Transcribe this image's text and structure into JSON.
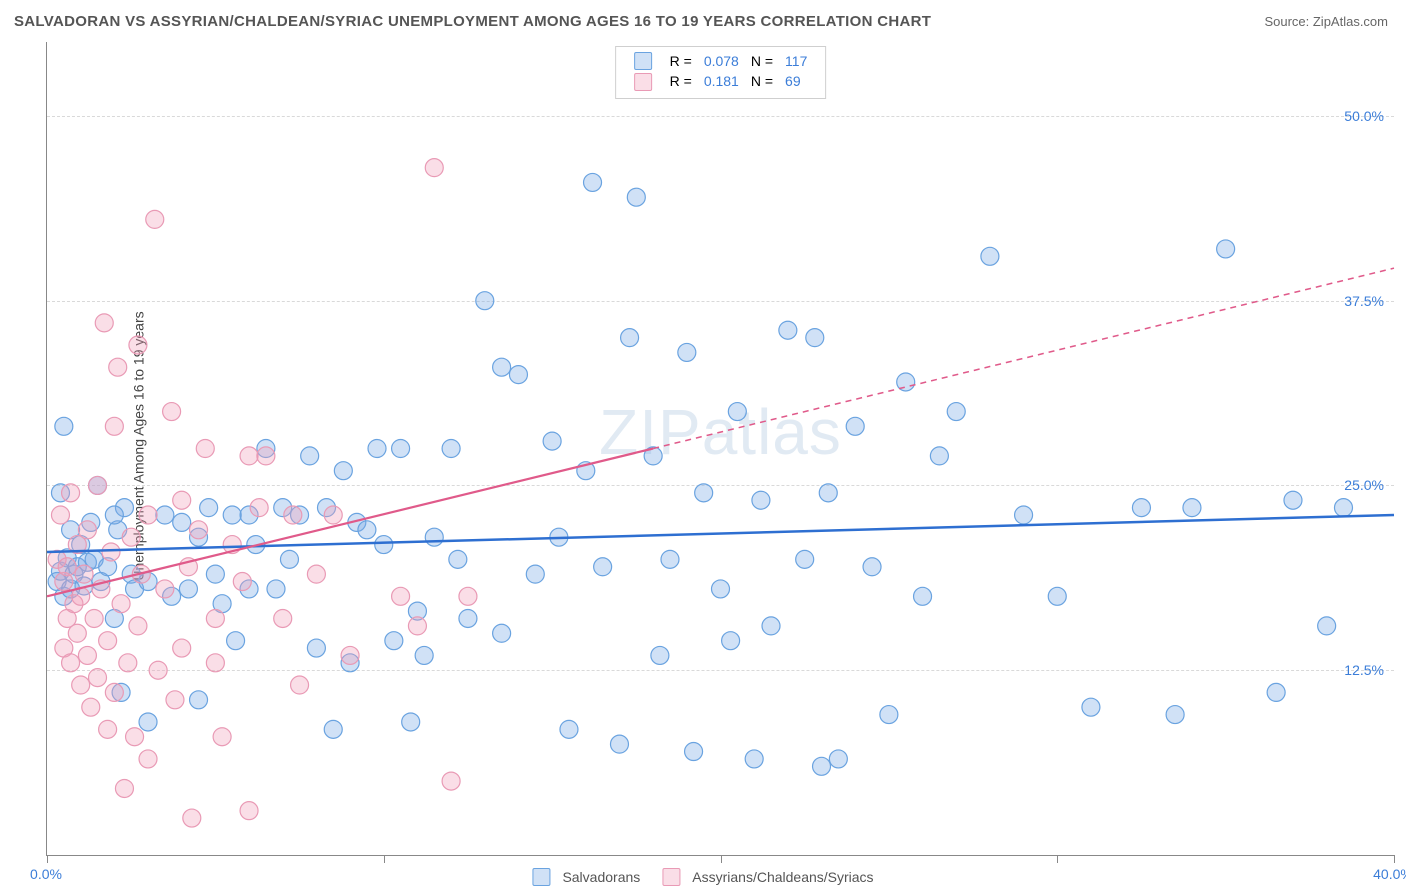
{
  "header": {
    "title": "SALVADORAN VS ASSYRIAN/CHALDEAN/SYRIAC UNEMPLOYMENT AMONG AGES 16 TO 19 YEARS CORRELATION CHART",
    "source_prefix": "Source: ",
    "source_link": "ZipAtlas.com"
  },
  "watermark": {
    "bold": "ZIP",
    "light": "atlas"
  },
  "chart": {
    "type": "scatter",
    "ylabel": "Unemployment Among Ages 16 to 19 years",
    "xlim": [
      0,
      40
    ],
    "ylim": [
      0,
      55
    ],
    "x_ticks": [
      0,
      10,
      20,
      30,
      40
    ],
    "x_tick_labels": {
      "0": "0.0%",
      "40": "40.0%"
    },
    "y_gridlines": [
      12.5,
      25.0,
      37.5,
      50.0
    ],
    "y_tick_labels": [
      "12.5%",
      "25.0%",
      "37.5%",
      "50.0%"
    ],
    "x_label_color": "#3b7dd8",
    "y_label_color": "#3b7dd8",
    "grid_color": "#d9d9d9",
    "axis_color": "#888888",
    "background_color": "#ffffff",
    "marker_radius": 9,
    "marker_stroke_width": 1.2,
    "series": [
      {
        "name": "Salvadorans",
        "fill": "rgba(120,170,230,0.35)",
        "stroke": "#6aa3e0",
        "R": "0.078",
        "N": "117",
        "trend": {
          "x1": 0,
          "y1": 20.5,
          "x2": 40,
          "y2": 23.0,
          "dash": null,
          "color": "#2e6fd1",
          "width": 2.5,
          "x2_dash": 40,
          "y2_dash": 23.0
        },
        "points": [
          [
            0.3,
            18.5
          ],
          [
            0.4,
            19.2
          ],
          [
            0.5,
            17.5
          ],
          [
            0.6,
            20.1
          ],
          [
            0.7,
            18.0
          ],
          [
            0.7,
            22.0
          ],
          [
            0.8,
            19.0
          ],
          [
            0.9,
            19.5
          ],
          [
            1.0,
            21.0
          ],
          [
            1.1,
            18.2
          ],
          [
            1.2,
            19.8
          ],
          [
            0.4,
            24.5
          ],
          [
            0.5,
            29.0
          ],
          [
            1.5,
            25.0
          ],
          [
            1.3,
            22.5
          ],
          [
            1.4,
            20.0
          ],
          [
            1.6,
            18.5
          ],
          [
            1.8,
            19.5
          ],
          [
            2.0,
            16.0
          ],
          [
            2.1,
            22.0
          ],
          [
            2.3,
            23.5
          ],
          [
            2.5,
            19.0
          ],
          [
            2.6,
            18.0
          ],
          [
            3.0,
            18.5
          ],
          [
            3.0,
            9.0
          ],
          [
            2.0,
            23.0
          ],
          [
            2.2,
            11.0
          ],
          [
            3.5,
            23.0
          ],
          [
            3.7,
            17.5
          ],
          [
            4.0,
            22.5
          ],
          [
            4.2,
            18.0
          ],
          [
            4.5,
            21.5
          ],
          [
            4.5,
            10.5
          ],
          [
            4.8,
            23.5
          ],
          [
            5.0,
            19.0
          ],
          [
            5.2,
            17.0
          ],
          [
            5.5,
            23.0
          ],
          [
            5.6,
            14.5
          ],
          [
            6.0,
            18.0
          ],
          [
            6.0,
            23.0
          ],
          [
            6.2,
            21.0
          ],
          [
            6.5,
            27.5
          ],
          [
            6.8,
            18.0
          ],
          [
            7.0,
            23.5
          ],
          [
            7.2,
            20.0
          ],
          [
            7.5,
            23.0
          ],
          [
            7.8,
            27.0
          ],
          [
            8.0,
            14.0
          ],
          [
            8.3,
            23.5
          ],
          [
            8.5,
            8.5
          ],
          [
            8.8,
            26.0
          ],
          [
            9.0,
            13.0
          ],
          [
            9.2,
            22.5
          ],
          [
            9.5,
            22.0
          ],
          [
            9.8,
            27.5
          ],
          [
            10.0,
            21.0
          ],
          [
            10.3,
            14.5
          ],
          [
            10.5,
            27.5
          ],
          [
            10.8,
            9.0
          ],
          [
            11.0,
            16.5
          ],
          [
            11.2,
            13.5
          ],
          [
            11.5,
            21.5
          ],
          [
            12.0,
            27.5
          ],
          [
            12.2,
            20.0
          ],
          [
            12.5,
            16.0
          ],
          [
            13.0,
            37.5
          ],
          [
            13.5,
            33.0
          ],
          [
            13.5,
            15.0
          ],
          [
            14.0,
            32.5
          ],
          [
            14.5,
            19.0
          ],
          [
            15.0,
            28.0
          ],
          [
            15.2,
            21.5
          ],
          [
            15.5,
            8.5
          ],
          [
            16.0,
            26.0
          ],
          [
            16.2,
            45.5
          ],
          [
            16.5,
            19.5
          ],
          [
            17.0,
            7.5
          ],
          [
            17.3,
            35.0
          ],
          [
            17.5,
            44.5
          ],
          [
            18.0,
            27.0
          ],
          [
            18.2,
            13.5
          ],
          [
            18.5,
            20.0
          ],
          [
            19.0,
            34.0
          ],
          [
            19.2,
            7.0
          ],
          [
            19.5,
            24.5
          ],
          [
            20.0,
            18.0
          ],
          [
            20.3,
            14.5
          ],
          [
            20.5,
            30.0
          ],
          [
            21.0,
            6.5
          ],
          [
            21.2,
            24.0
          ],
          [
            21.5,
            15.5
          ],
          [
            22.0,
            35.5
          ],
          [
            22.5,
            20.0
          ],
          [
            22.8,
            35.0
          ],
          [
            23.0,
            6.0
          ],
          [
            23.2,
            24.5
          ],
          [
            23.5,
            6.5
          ],
          [
            24.0,
            29.0
          ],
          [
            24.5,
            19.5
          ],
          [
            25.0,
            9.5
          ],
          [
            25.5,
            32.0
          ],
          [
            26.0,
            17.5
          ],
          [
            26.5,
            27.0
          ],
          [
            27.0,
            30.0
          ],
          [
            28.0,
            40.5
          ],
          [
            29.0,
            23.0
          ],
          [
            30.0,
            17.5
          ],
          [
            31.0,
            10.0
          ],
          [
            32.5,
            23.5
          ],
          [
            33.5,
            9.5
          ],
          [
            34.0,
            23.5
          ],
          [
            35.0,
            41.0
          ],
          [
            36.5,
            11.0
          ],
          [
            37.0,
            24.0
          ],
          [
            38.0,
            15.5
          ],
          [
            38.5,
            23.5
          ]
        ]
      },
      {
        "name": "Assyrians/Chaldeans/Syriacs",
        "fill": "rgba(240,160,185,0.35)",
        "stroke": "#e99ab5",
        "R": "0.181",
        "N": "69",
        "trend": {
          "x1": 0,
          "y1": 17.5,
          "x2": 18,
          "y2": 27.5,
          "dash": "6,5",
          "color": "#e05a8a",
          "width": 2.2,
          "x2_dash": 40,
          "y2_dash": 39.7
        },
        "points": [
          [
            0.3,
            20.0
          ],
          [
            0.4,
            23.0
          ],
          [
            0.5,
            14.0
          ],
          [
            0.5,
            18.5
          ],
          [
            0.6,
            19.5
          ],
          [
            0.6,
            16.0
          ],
          [
            0.7,
            24.5
          ],
          [
            0.7,
            13.0
          ],
          [
            0.8,
            17.0
          ],
          [
            0.9,
            15.0
          ],
          [
            0.9,
            21.0
          ],
          [
            1.0,
            11.5
          ],
          [
            1.0,
            17.5
          ],
          [
            1.1,
            19.0
          ],
          [
            1.2,
            13.5
          ],
          [
            1.2,
            22.0
          ],
          [
            1.3,
            10.0
          ],
          [
            1.4,
            16.0
          ],
          [
            1.5,
            25.0
          ],
          [
            1.5,
            12.0
          ],
          [
            1.6,
            18.0
          ],
          [
            1.7,
            36.0
          ],
          [
            1.8,
            14.5
          ],
          [
            1.8,
            8.5
          ],
          [
            1.9,
            20.5
          ],
          [
            2.0,
            29.0
          ],
          [
            2.0,
            11.0
          ],
          [
            2.1,
            33.0
          ],
          [
            2.2,
            17.0
          ],
          [
            2.3,
            4.5
          ],
          [
            2.4,
            13.0
          ],
          [
            2.5,
            21.5
          ],
          [
            2.6,
            8.0
          ],
          [
            2.7,
            34.5
          ],
          [
            2.7,
            15.5
          ],
          [
            2.8,
            19.0
          ],
          [
            3.0,
            23.0
          ],
          [
            3.0,
            6.5
          ],
          [
            3.2,
            43.0
          ],
          [
            3.3,
            12.5
          ],
          [
            3.5,
            18.0
          ],
          [
            3.7,
            30.0
          ],
          [
            3.8,
            10.5
          ],
          [
            4.0,
            24.0
          ],
          [
            4.0,
            14.0
          ],
          [
            4.2,
            19.5
          ],
          [
            4.3,
            2.5
          ],
          [
            4.5,
            22.0
          ],
          [
            4.7,
            27.5
          ],
          [
            5.0,
            16.0
          ],
          [
            5.0,
            13.0
          ],
          [
            5.2,
            8.0
          ],
          [
            5.5,
            21.0
          ],
          [
            5.8,
            18.5
          ],
          [
            6.0,
            27.0
          ],
          [
            6.0,
            3.0
          ],
          [
            6.3,
            23.5
          ],
          [
            6.5,
            27.0
          ],
          [
            7.0,
            16.0
          ],
          [
            7.3,
            23.0
          ],
          [
            7.5,
            11.5
          ],
          [
            8.0,
            19.0
          ],
          [
            8.5,
            23.0
          ],
          [
            9.0,
            13.5
          ],
          [
            10.5,
            17.5
          ],
          [
            11.5,
            46.5
          ],
          [
            11.0,
            15.5
          ],
          [
            12.0,
            5.0
          ],
          [
            12.5,
            17.5
          ]
        ]
      }
    ],
    "legend_top": {
      "cols": [
        "swatch",
        "R_label",
        "R_val",
        "N_label",
        "N_val"
      ],
      "R_label": "R =",
      "N_label": "N ="
    }
  }
}
